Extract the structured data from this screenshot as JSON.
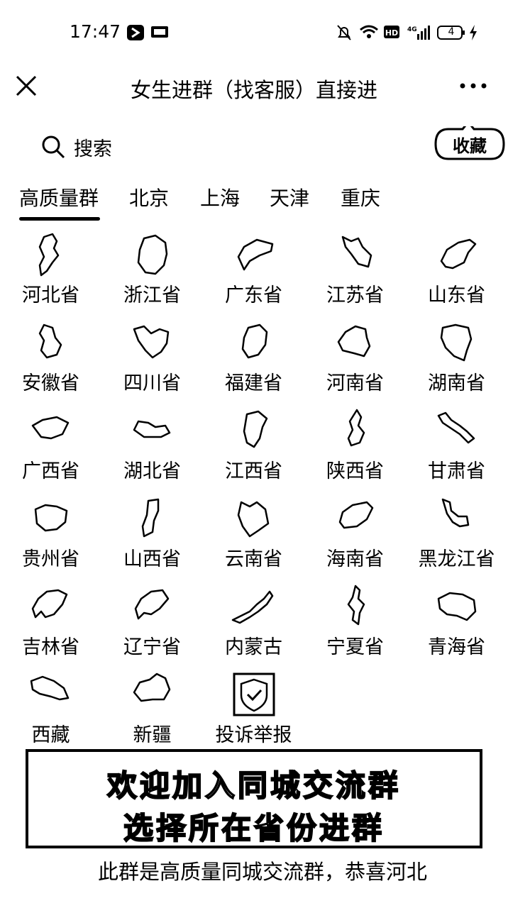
{
  "status_bar": {
    "time": "17:47",
    "battery": "4"
  },
  "nav": {
    "title": "女生进群（找客服）直接进"
  },
  "search": {
    "label": "搜索",
    "favorite_label": "收藏"
  },
  "tabs": [
    {
      "label": "高质量群",
      "active": true
    },
    {
      "label": "北京"
    },
    {
      "label": "上海"
    },
    {
      "label": "天津"
    },
    {
      "label": "重庆"
    }
  ],
  "provinces": [
    "河北省",
    "浙江省",
    "广东省",
    "江苏省",
    "山东省",
    "安徽省",
    "四川省",
    "福建省",
    "河南省",
    "湖南省",
    "广西省",
    "湖北省",
    "江西省",
    "陕西省",
    "甘肃省",
    "贵州省",
    "山西省",
    "云南省",
    "海南省",
    "黑龙江省",
    "吉林省",
    "辽宁省",
    "内蒙古",
    "宁夏省",
    "青海省",
    "西藏",
    "新疆"
  ],
  "report": {
    "label": "投诉举报"
  },
  "banner": {
    "line1": "欢迎加入同城交流群",
    "line2": "选择所在省份进群"
  },
  "marquee": {
    "text": "此群是高质量同城交流群，恭喜河北"
  }
}
